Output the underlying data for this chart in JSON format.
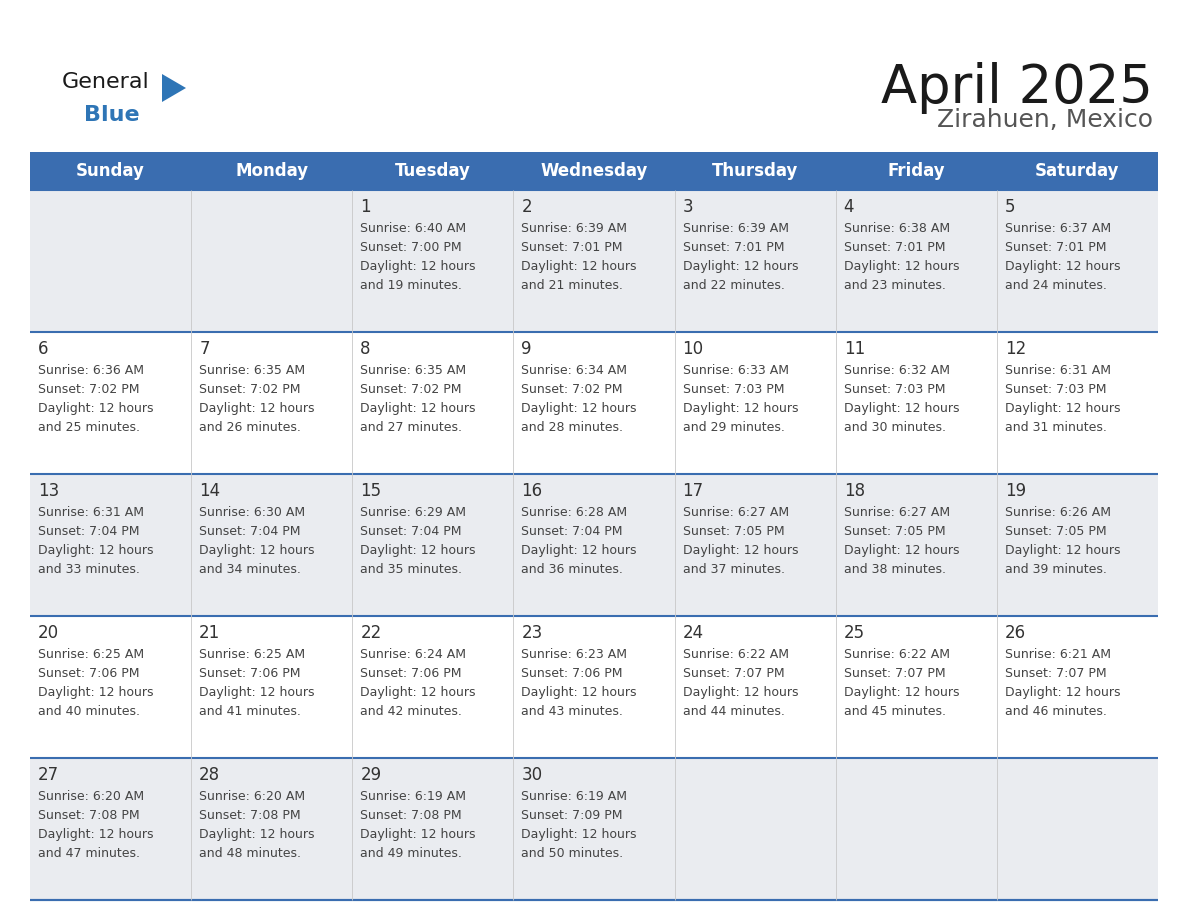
{
  "title": "April 2025",
  "subtitle": "Zirahuen, Mexico",
  "header_bg": "#3A6DB0",
  "header_text": "#FFFFFF",
  "row_bg_light": "#EAECF0",
  "row_bg_white": "#FFFFFF",
  "day_number_color": "#333333",
  "cell_text_color": "#444444",
  "header_days": [
    "Sunday",
    "Monday",
    "Tuesday",
    "Wednesday",
    "Thursday",
    "Friday",
    "Saturday"
  ],
  "title_color": "#1a1a1a",
  "subtitle_color": "#555555",
  "divider_color": "#3A6DB0",
  "logo_general_color": "#1a1a1a",
  "logo_blue_color": "#2E75B6",
  "logo_triangle_color": "#2E75B6",
  "calendar_data": [
    [
      {
        "day": null,
        "sunrise": null,
        "sunset": null,
        "daylight": null
      },
      {
        "day": null,
        "sunrise": null,
        "sunset": null,
        "daylight": null
      },
      {
        "day": 1,
        "sunrise": "6:40 AM",
        "sunset": "7:00 PM",
        "daylight": "12 hours\nand 19 minutes."
      },
      {
        "day": 2,
        "sunrise": "6:39 AM",
        "sunset": "7:01 PM",
        "daylight": "12 hours\nand 21 minutes."
      },
      {
        "day": 3,
        "sunrise": "6:39 AM",
        "sunset": "7:01 PM",
        "daylight": "12 hours\nand 22 minutes."
      },
      {
        "day": 4,
        "sunrise": "6:38 AM",
        "sunset": "7:01 PM",
        "daylight": "12 hours\nand 23 minutes."
      },
      {
        "day": 5,
        "sunrise": "6:37 AM",
        "sunset": "7:01 PM",
        "daylight": "12 hours\nand 24 minutes."
      }
    ],
    [
      {
        "day": 6,
        "sunrise": "6:36 AM",
        "sunset": "7:02 PM",
        "daylight": "12 hours\nand 25 minutes."
      },
      {
        "day": 7,
        "sunrise": "6:35 AM",
        "sunset": "7:02 PM",
        "daylight": "12 hours\nand 26 minutes."
      },
      {
        "day": 8,
        "sunrise": "6:35 AM",
        "sunset": "7:02 PM",
        "daylight": "12 hours\nand 27 minutes."
      },
      {
        "day": 9,
        "sunrise": "6:34 AM",
        "sunset": "7:02 PM",
        "daylight": "12 hours\nand 28 minutes."
      },
      {
        "day": 10,
        "sunrise": "6:33 AM",
        "sunset": "7:03 PM",
        "daylight": "12 hours\nand 29 minutes."
      },
      {
        "day": 11,
        "sunrise": "6:32 AM",
        "sunset": "7:03 PM",
        "daylight": "12 hours\nand 30 minutes."
      },
      {
        "day": 12,
        "sunrise": "6:31 AM",
        "sunset": "7:03 PM",
        "daylight": "12 hours\nand 31 minutes."
      }
    ],
    [
      {
        "day": 13,
        "sunrise": "6:31 AM",
        "sunset": "7:04 PM",
        "daylight": "12 hours\nand 33 minutes."
      },
      {
        "day": 14,
        "sunrise": "6:30 AM",
        "sunset": "7:04 PM",
        "daylight": "12 hours\nand 34 minutes."
      },
      {
        "day": 15,
        "sunrise": "6:29 AM",
        "sunset": "7:04 PM",
        "daylight": "12 hours\nand 35 minutes."
      },
      {
        "day": 16,
        "sunrise": "6:28 AM",
        "sunset": "7:04 PM",
        "daylight": "12 hours\nand 36 minutes."
      },
      {
        "day": 17,
        "sunrise": "6:27 AM",
        "sunset": "7:05 PM",
        "daylight": "12 hours\nand 37 minutes."
      },
      {
        "day": 18,
        "sunrise": "6:27 AM",
        "sunset": "7:05 PM",
        "daylight": "12 hours\nand 38 minutes."
      },
      {
        "day": 19,
        "sunrise": "6:26 AM",
        "sunset": "7:05 PM",
        "daylight": "12 hours\nand 39 minutes."
      }
    ],
    [
      {
        "day": 20,
        "sunrise": "6:25 AM",
        "sunset": "7:06 PM",
        "daylight": "12 hours\nand 40 minutes."
      },
      {
        "day": 21,
        "sunrise": "6:25 AM",
        "sunset": "7:06 PM",
        "daylight": "12 hours\nand 41 minutes."
      },
      {
        "day": 22,
        "sunrise": "6:24 AM",
        "sunset": "7:06 PM",
        "daylight": "12 hours\nand 42 minutes."
      },
      {
        "day": 23,
        "sunrise": "6:23 AM",
        "sunset": "7:06 PM",
        "daylight": "12 hours\nand 43 minutes."
      },
      {
        "day": 24,
        "sunrise": "6:22 AM",
        "sunset": "7:07 PM",
        "daylight": "12 hours\nand 44 minutes."
      },
      {
        "day": 25,
        "sunrise": "6:22 AM",
        "sunset": "7:07 PM",
        "daylight": "12 hours\nand 45 minutes."
      },
      {
        "day": 26,
        "sunrise": "6:21 AM",
        "sunset": "7:07 PM",
        "daylight": "12 hours\nand 46 minutes."
      }
    ],
    [
      {
        "day": 27,
        "sunrise": "6:20 AM",
        "sunset": "7:08 PM",
        "daylight": "12 hours\nand 47 minutes."
      },
      {
        "day": 28,
        "sunrise": "6:20 AM",
        "sunset": "7:08 PM",
        "daylight": "12 hours\nand 48 minutes."
      },
      {
        "day": 29,
        "sunrise": "6:19 AM",
        "sunset": "7:08 PM",
        "daylight": "12 hours\nand 49 minutes."
      },
      {
        "day": 30,
        "sunrise": "6:19 AM",
        "sunset": "7:09 PM",
        "daylight": "12 hours\nand 50 minutes."
      },
      {
        "day": null,
        "sunrise": null,
        "sunset": null,
        "daylight": null
      },
      {
        "day": null,
        "sunrise": null,
        "sunset": null,
        "daylight": null
      },
      {
        "day": null,
        "sunrise": null,
        "sunset": null,
        "daylight": null
      }
    ]
  ]
}
